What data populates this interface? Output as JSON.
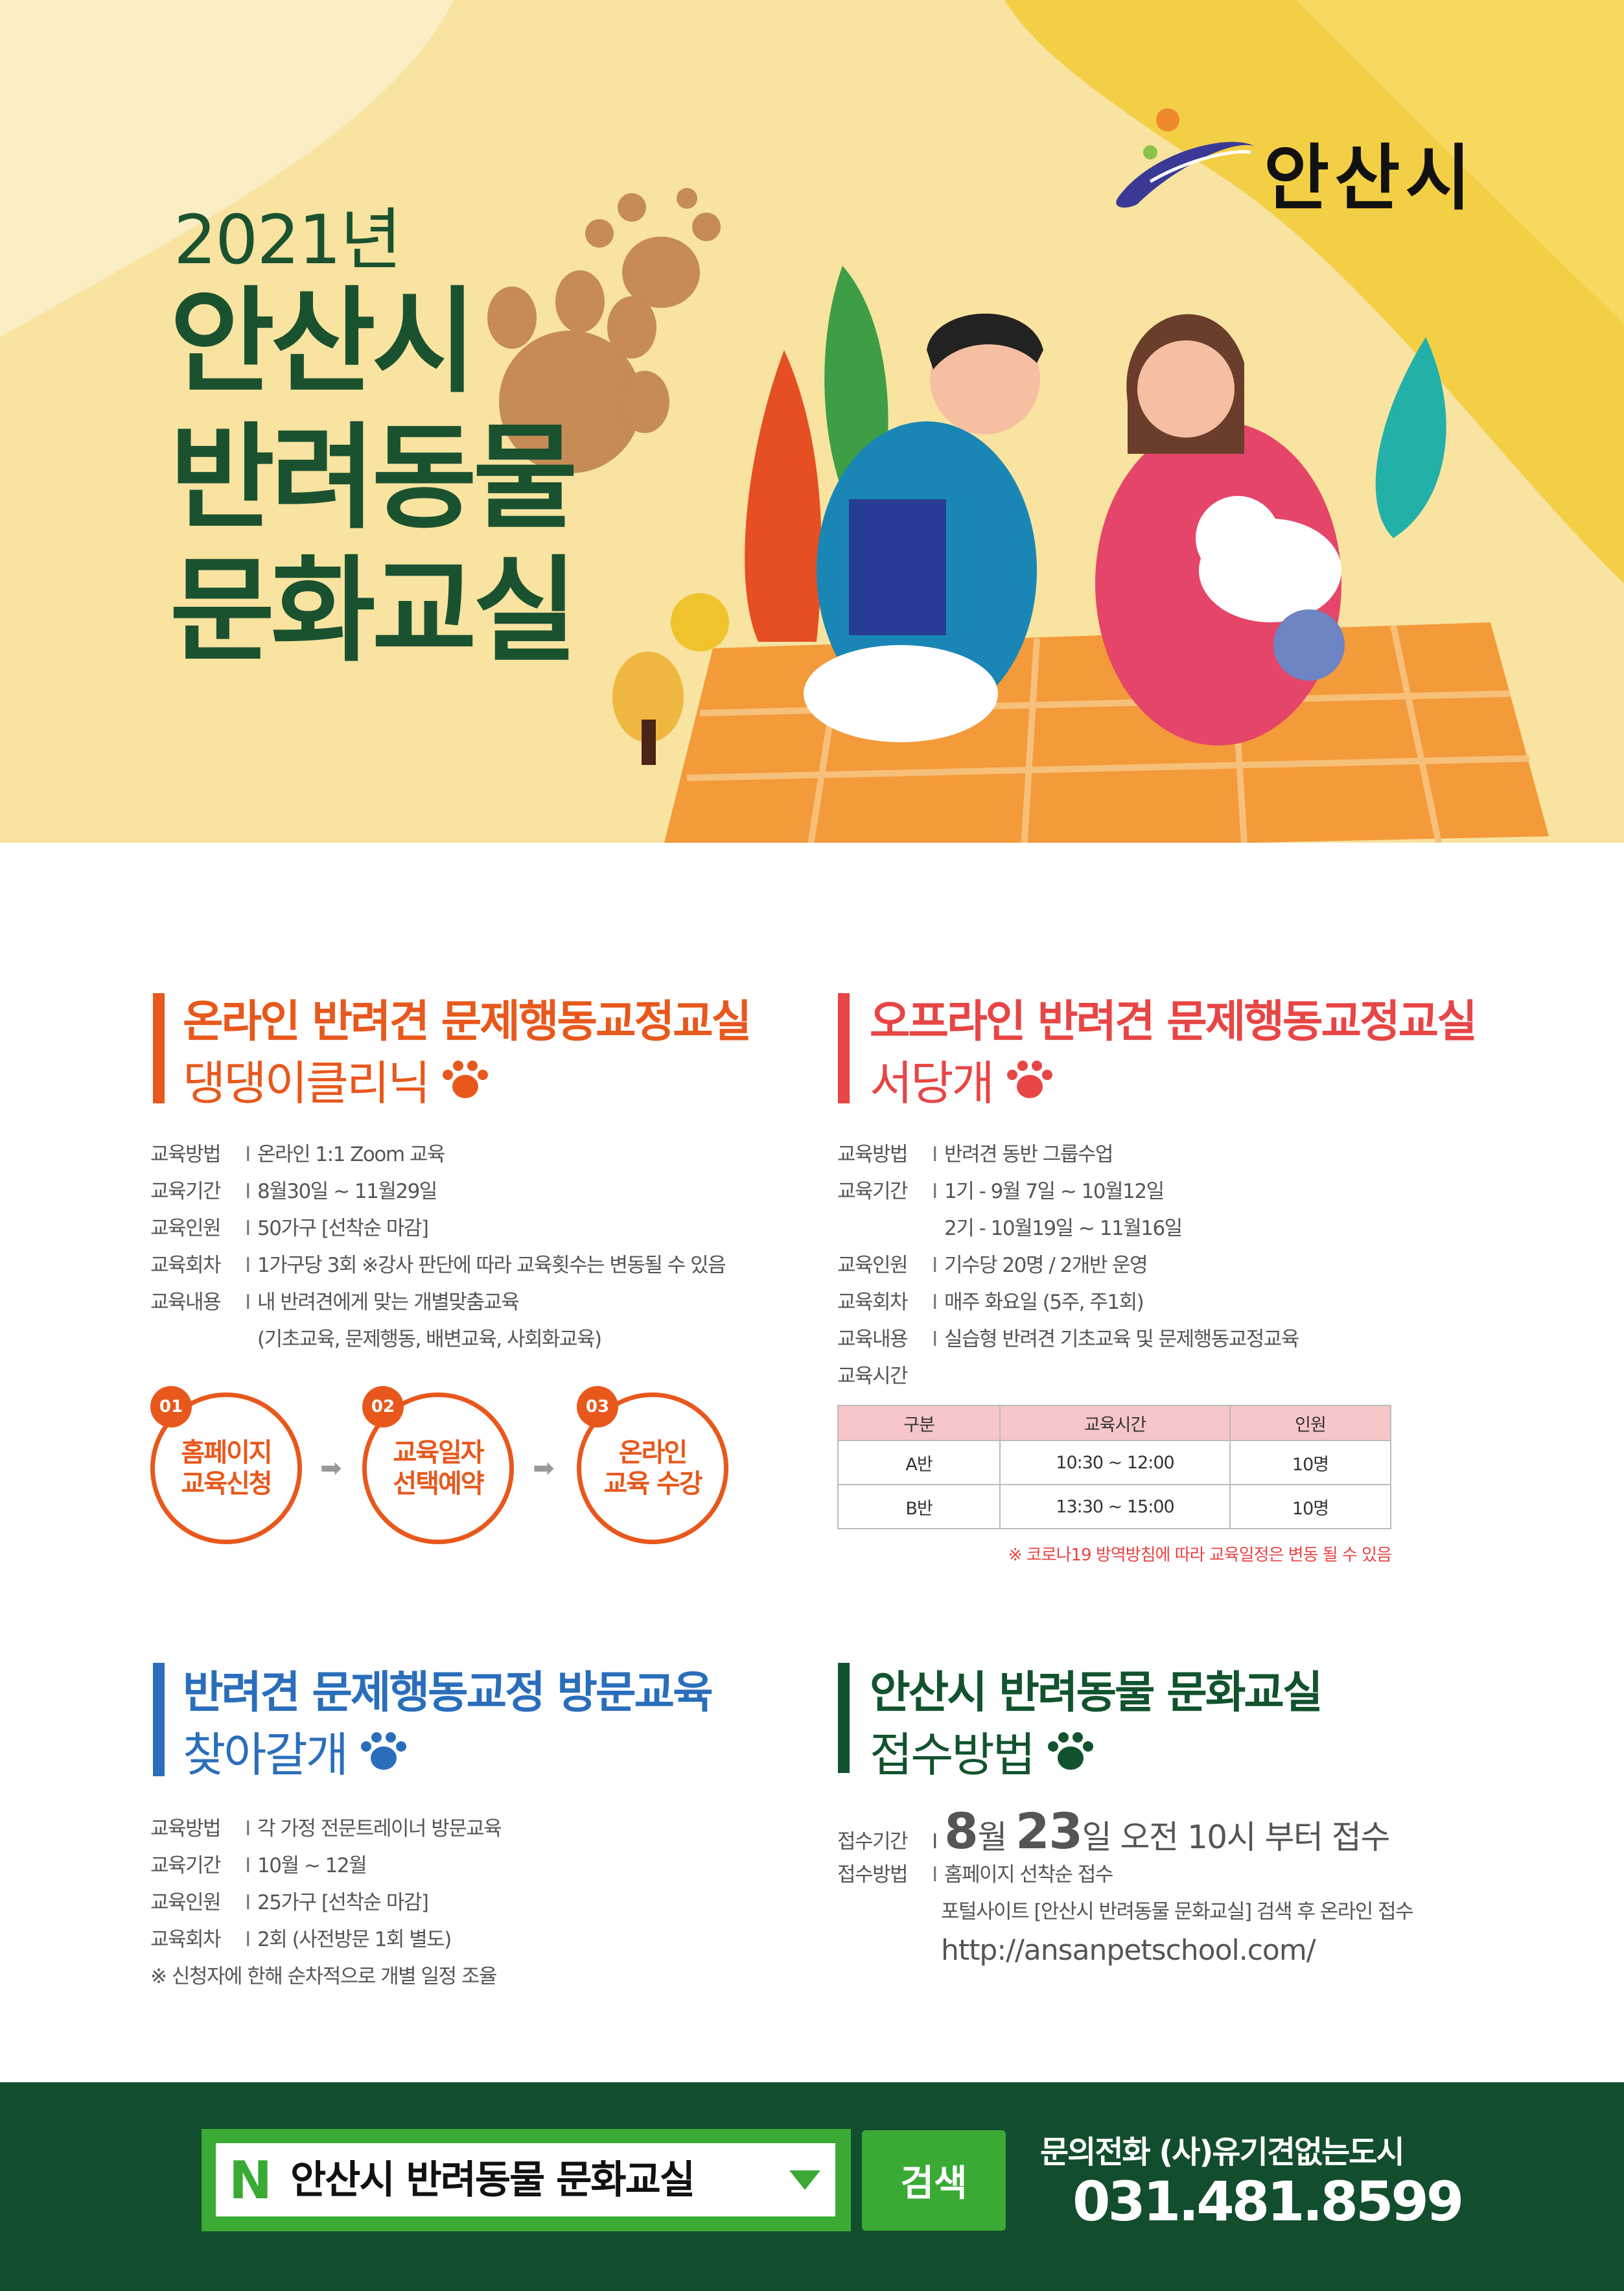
{
  "hero": {
    "year": "2021년",
    "title_lines": [
      "안산시",
      "반려동물",
      "문화교실"
    ],
    "logo_text": "안산시"
  },
  "online": {
    "title": "온라인 반려견 문제행동교정교실",
    "subtitle": "댕댕이클리닉",
    "color": "#e8581c",
    "rows": [
      {
        "label": "교육방법",
        "value": "온라인 1:1 Zoom 교육"
      },
      {
        "label": "교육기간",
        "value": "8월30일 ~ 11월29일"
      },
      {
        "label": "교육인원",
        "value": "50가구 [선착순 마감]"
      },
      {
        "label": "교육회차",
        "value": "1가구당 3회  ※강사 판단에 따라 교육횟수는 변동될 수 있음"
      },
      {
        "label": "교육내용",
        "value": "내 반려견에게 맞는 개별맞춤교육"
      },
      {
        "label": "",
        "value": "(기초교육, 문제행동, 배변교육, 사회화교육)"
      }
    ],
    "steps": [
      {
        "num": "01",
        "line1": "홈페이지",
        "line2": "교육신청"
      },
      {
        "num": "02",
        "line1": "교육일자",
        "line2": "선택예약"
      },
      {
        "num": "03",
        "line1": "온라인",
        "line2": "교육 수강"
      }
    ]
  },
  "offline": {
    "title": "오프라인 반려견 문제행동교정교실",
    "subtitle": "서당개",
    "color": "#e84545",
    "rows": [
      {
        "label": "교육방법",
        "value": "반려견 동반 그룹수업"
      },
      {
        "label": "교육기간",
        "value": "1기 -   9월   7일 ~ 10월12일"
      },
      {
        "label": "",
        "value": "2기 - 10월19일 ~ 11월16일"
      },
      {
        "label": "교육인원",
        "value": "기수당 20명 / 2개반 운영"
      },
      {
        "label": "교육회차",
        "value": "매주 화요일 (5주, 주1회)"
      },
      {
        "label": "교육내용",
        "value": "실습형 반려견 기초교육 및 문제행동교정교육"
      },
      {
        "label": "교육시간",
        "value": ""
      }
    ],
    "table": {
      "headers": [
        "구분",
        "교육시간",
        "인원"
      ],
      "rows": [
        [
          "A반",
          "10:30 ~ 12:00",
          "10명"
        ],
        [
          "B반",
          "13:30 ~ 15:00",
          "10명"
        ]
      ]
    },
    "note": "※ 코로나19 방역방침에 따라  교육일정은 변동 될 수 있음"
  },
  "visit": {
    "title": "반려견 문제행동교정 방문교육",
    "subtitle": "찾아갈개",
    "color": "#2a6ebb",
    "rows": [
      {
        "label": "교육방법",
        "value": "각 가정 전문트레이너 방문교육"
      },
      {
        "label": "교육기간",
        "value": "10월 ~ 12월"
      },
      {
        "label": "교육인원",
        "value": "25가구 [선착순 마감]"
      },
      {
        "label": "교육회차",
        "value": "2회 (사전방문 1회 별도)"
      }
    ],
    "note": "※ 신청자에 한해 순차적으로 개별 일정 조율"
  },
  "apply": {
    "title": "안산시 반려동물 문화교실",
    "subtitle": "접수방법",
    "color": "#11532e",
    "period_label": "접수기간",
    "period_month": "8",
    "period_month_unit": "월",
    "period_day": "23",
    "period_rest": "일 오전 10시 부터 접수",
    "method_label": "접수방법",
    "method_value": "홈페이지 선착순 접수",
    "portal_text": "포털사이트 [안산시 반려동물 문화교실] 검색 후 온라인 접수",
    "url": "http://ansanpetschool.com/"
  },
  "footer": {
    "search_logo": "N",
    "search_query": "안산시 반려동물 문화교실",
    "search_button": "검색",
    "contact_label": "문의전화 (사)유기견없는도시",
    "phone": "031.481.8599"
  }
}
